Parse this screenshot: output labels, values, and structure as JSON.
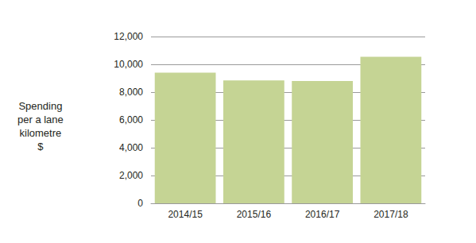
{
  "chart_data": {
    "type": "bar",
    "y_label": "Spending\nper a lane\nkilometre\n$",
    "categories": [
      "2014/15",
      "2015/16",
      "2016/17",
      "2017/18"
    ],
    "values": [
      9400,
      8850,
      8800,
      10550
    ],
    "color": "#c5d494",
    "ylim": [
      0,
      12000
    ],
    "yticks": [
      0,
      {
        "value": 2000,
        "label": "2,000"
      },
      {
        "value": 4000,
        "label": "4,000"
      },
      {
        "value": 6000,
        "label": "6,000"
      },
      {
        "value": 8000,
        "label": "8,000"
      },
      {
        "value": 10000,
        "label": "10,000"
      },
      {
        "value": 12000,
        "label": "12,000"
      }
    ],
    "grid": true
  }
}
